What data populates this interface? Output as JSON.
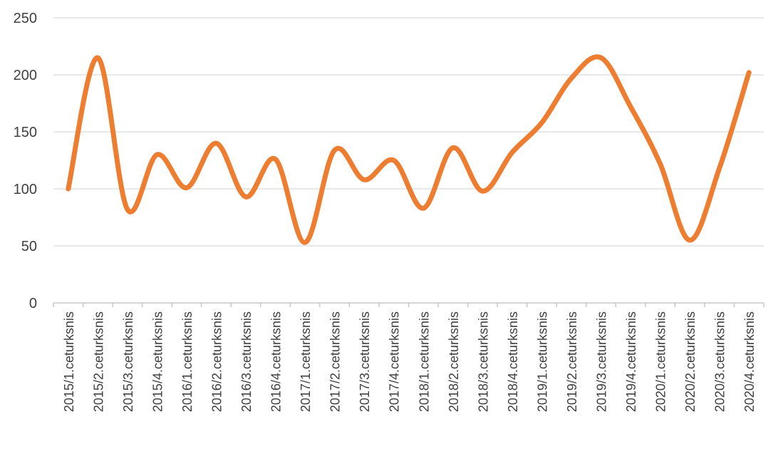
{
  "chart_data": {
    "type": "line",
    "title": "",
    "xlabel": "",
    "ylabel": "",
    "ylim": [
      0,
      250
    ],
    "yticks": [
      0,
      50,
      100,
      150,
      200,
      250
    ],
    "grid": "horizontal",
    "legend": "none",
    "categories": [
      "2015/1.ceturksnis",
      "2015/2.ceturksnis",
      "2015/3.ceturksnis",
      "2015/4.ceturksnis",
      "2016/1.ceturksnis",
      "2016/2.ceturksnis",
      "2016/3.ceturksnis",
      "2016/4.ceturksnis",
      "2017/1.ceturksnis",
      "2017/2.ceturksnis",
      "2017/3.ceturksnis",
      "2017/4.ceturksnis",
      "2018/1.ceturksnis",
      "2018/2.ceturksnis",
      "2018/3.ceturksnis",
      "2018/4.ceturksnis",
      "2019/1.ceturksnis",
      "2019/2.ceturksnis",
      "2019/3.ceturksnis",
      "2019/4.ceturksnis",
      "2020/1.ceturksnis",
      "2020/2.ceturksnis",
      "2020/3.ceturksnis",
      "2020/4.ceturksnis"
    ],
    "series": [
      {
        "values": [
          100,
          215,
          82,
          130,
          101,
          140,
          93,
          126,
          53,
          134,
          108,
          125,
          83,
          136,
          98,
          132,
          158,
          197,
          215,
          172,
          122,
          55,
          118,
          202
        ],
        "color": "#ED7D31",
        "smooth": true
      }
    ],
    "colors": {
      "grid": "#d9d9d9",
      "axis": "#bfbfbf",
      "text": "#404040"
    }
  }
}
